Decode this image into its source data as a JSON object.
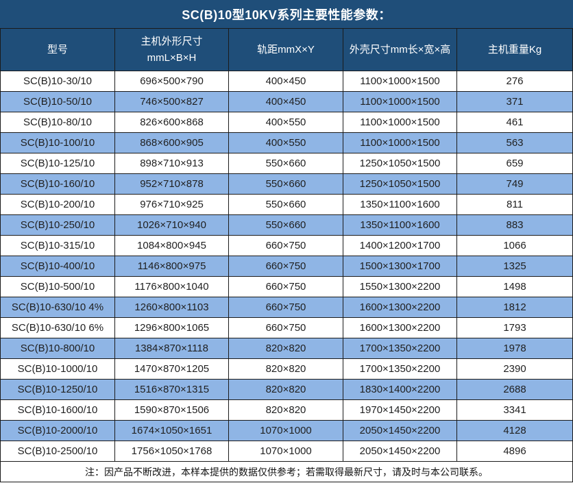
{
  "title": "SC(B)10型10KV系列主要性能参数：",
  "footnote": "注：因产品不断改进，本样本提供的数据仅供参考；若需取得最新尺寸，请及时与本公司联系。",
  "colors": {
    "header_bg": "#1F4E79",
    "header_text": "#FFFFFF",
    "row_bg": "#FFFFFF",
    "row_alt_bg": "#8FB5E5",
    "cell_text": "#1F1F1F",
    "border": "#1A1A1A"
  },
  "chart_data": {
    "type": "table",
    "title": "SC(B)10型10KV系列主要性能参数：",
    "columns": [
      "型号",
      "主机外形尺寸\nmmL×B×H",
      "轨距mmX×Y",
      "外壳尺寸mm长×宽×高",
      "主机重量Kg"
    ],
    "rows": [
      [
        "SC(B)10-30/10",
        "696×500×790",
        "400×450",
        "1100×1000×1500",
        "276"
      ],
      [
        "SC(B)10-50/10",
        "746×500×827",
        "400×450",
        "1100×1000×1500",
        "371"
      ],
      [
        "SC(B)10-80/10",
        "826×600×868",
        "400×550",
        "1100×1000×1500",
        "461"
      ],
      [
        "SC(B)10-100/10",
        "868×600×905",
        "400×550",
        "1100×1000×1500",
        "563"
      ],
      [
        "SC(B)10-125/10",
        "898×710×913",
        "550×660",
        "1250×1050×1500",
        "659"
      ],
      [
        "SC(B)10-160/10",
        "952×710×878",
        "550×660",
        "1250×1050×1500",
        "749"
      ],
      [
        "SC(B)10-200/10",
        "976×710×925",
        "550×660",
        "1350×1100×1600",
        "811"
      ],
      [
        "SC(B)10-250/10",
        "1026×710×940",
        "550×660",
        "1350×1100×1600",
        "883"
      ],
      [
        "SC(B)10-315/10",
        "1084×800×945",
        "660×750",
        "1400×1200×1700",
        "1066"
      ],
      [
        "SC(B)10-400/10",
        "1146×800×975",
        "660×750",
        "1500×1300×1700",
        "1325"
      ],
      [
        "SC(B)10-500/10",
        "1176×800×1040",
        "660×750",
        "1550×1300×2200",
        "1498"
      ],
      [
        "SC(B)10-630/10 4%",
        "1260×800×1103",
        "660×750",
        "1600×1300×2200",
        "1812"
      ],
      [
        "SC(B)10-630/10 6%",
        "1296×800×1065",
        "660×750",
        "1600×1300×2200",
        "1793"
      ],
      [
        "SC(B)10-800/10",
        "1384×870×1118",
        "820×820",
        "1700×1350×2200",
        "1978"
      ],
      [
        "SC(B)10-1000/10",
        "1470×870×1205",
        "820×820",
        "1700×1350×2200",
        "2390"
      ],
      [
        "SC(B)10-1250/10",
        "1516×870×1315",
        "820×820",
        "1830×1400×2200",
        "2688"
      ],
      [
        "SC(B)10-1600/10",
        "1590×870×1506",
        "820×820",
        "1970×1450×2200",
        "3341"
      ],
      [
        "SC(B)10-2000/10",
        "1674×1050×1651",
        "1070×1000",
        "2050×1450×2200",
        "4128"
      ],
      [
        "SC(B)10-2500/10",
        "1756×1050×1768",
        "1070×1000",
        "2050×1450×2200",
        "4896"
      ]
    ],
    "footnote": "注：因产品不断改进，本样本提供的数据仅供参考；若需取得最新尺寸，请及时与本公司联系。",
    "layout": {
      "striped": true,
      "stripe_colors": [
        "#FFFFFF",
        "#8FB5E5"
      ],
      "header_position": "top",
      "text_align": "center",
      "grid": true
    }
  }
}
